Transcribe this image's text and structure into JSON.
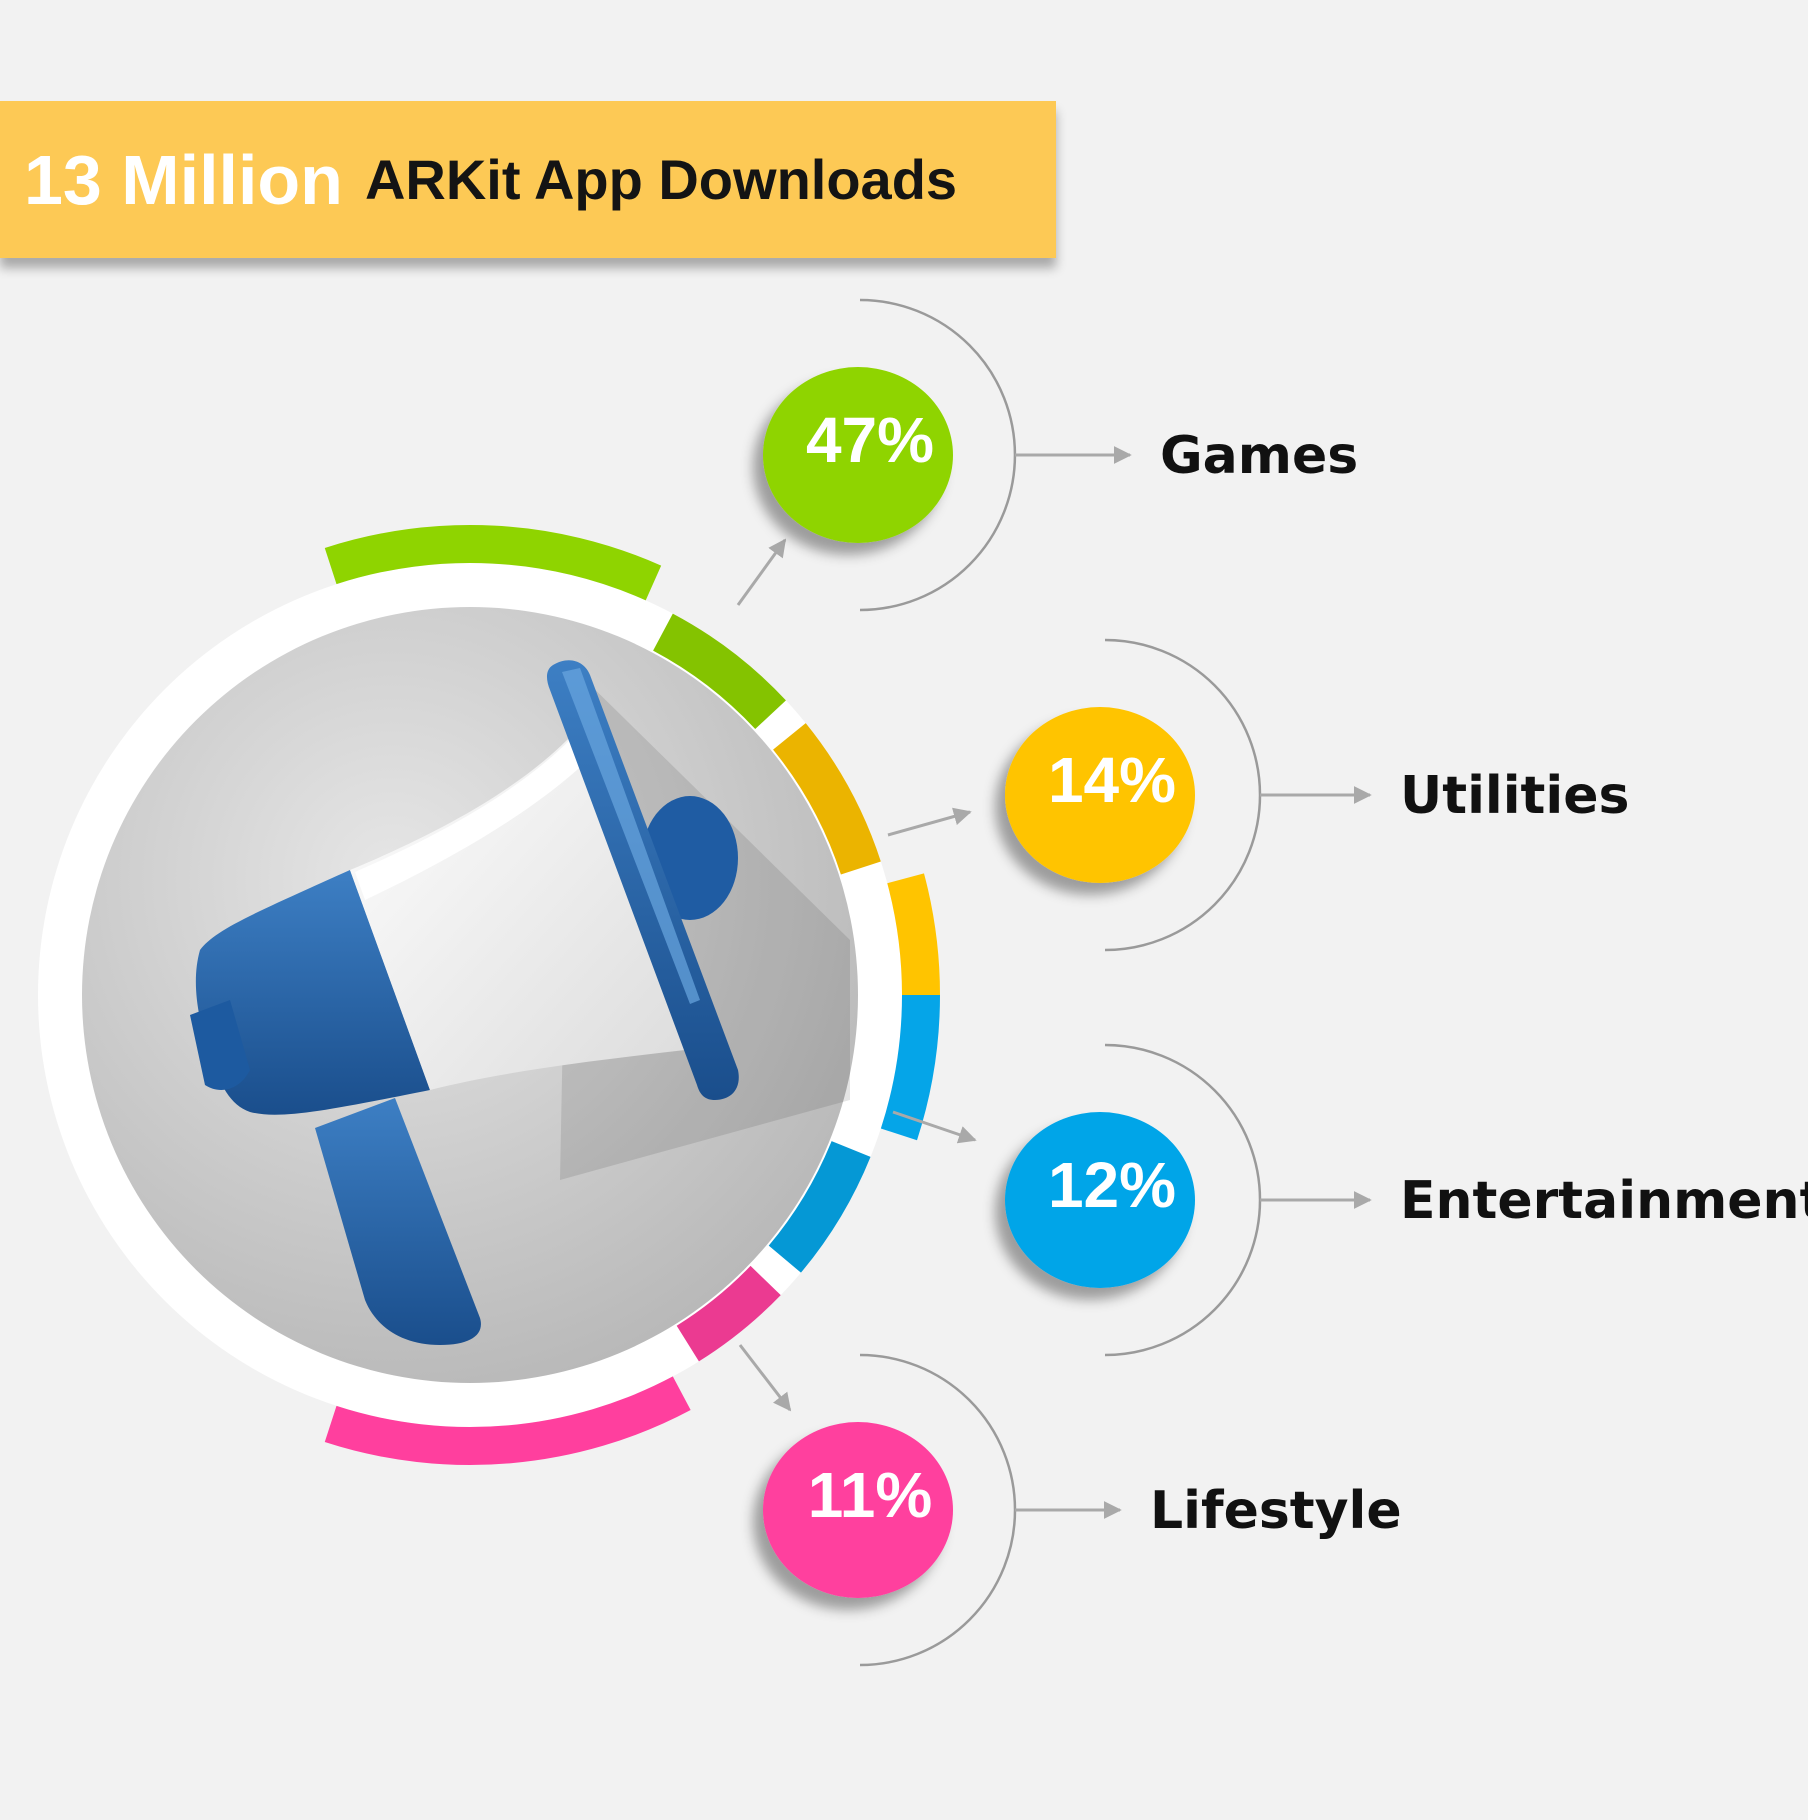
{
  "header": {
    "highlight": "13 Million",
    "title": "ARKit App Downloads"
  },
  "chart_data": {
    "type": "pie",
    "title": "13 Million ARKit App Downloads",
    "slices": [
      {
        "label": "Games",
        "value": 47,
        "value_label": "47%",
        "color": "#8fd400"
      },
      {
        "label": "Utilities",
        "value": 14,
        "value_label": "14%",
        "color": "#ffc400"
      },
      {
        "label": "Entertainment",
        "value": 12,
        "value_label": "12%",
        "color": "#05a5e8"
      },
      {
        "label": "Lifestyle",
        "value": 11,
        "value_label": "11%",
        "color": "#ff3f9e"
      }
    ],
    "center_icon": "megaphone-icon"
  }
}
